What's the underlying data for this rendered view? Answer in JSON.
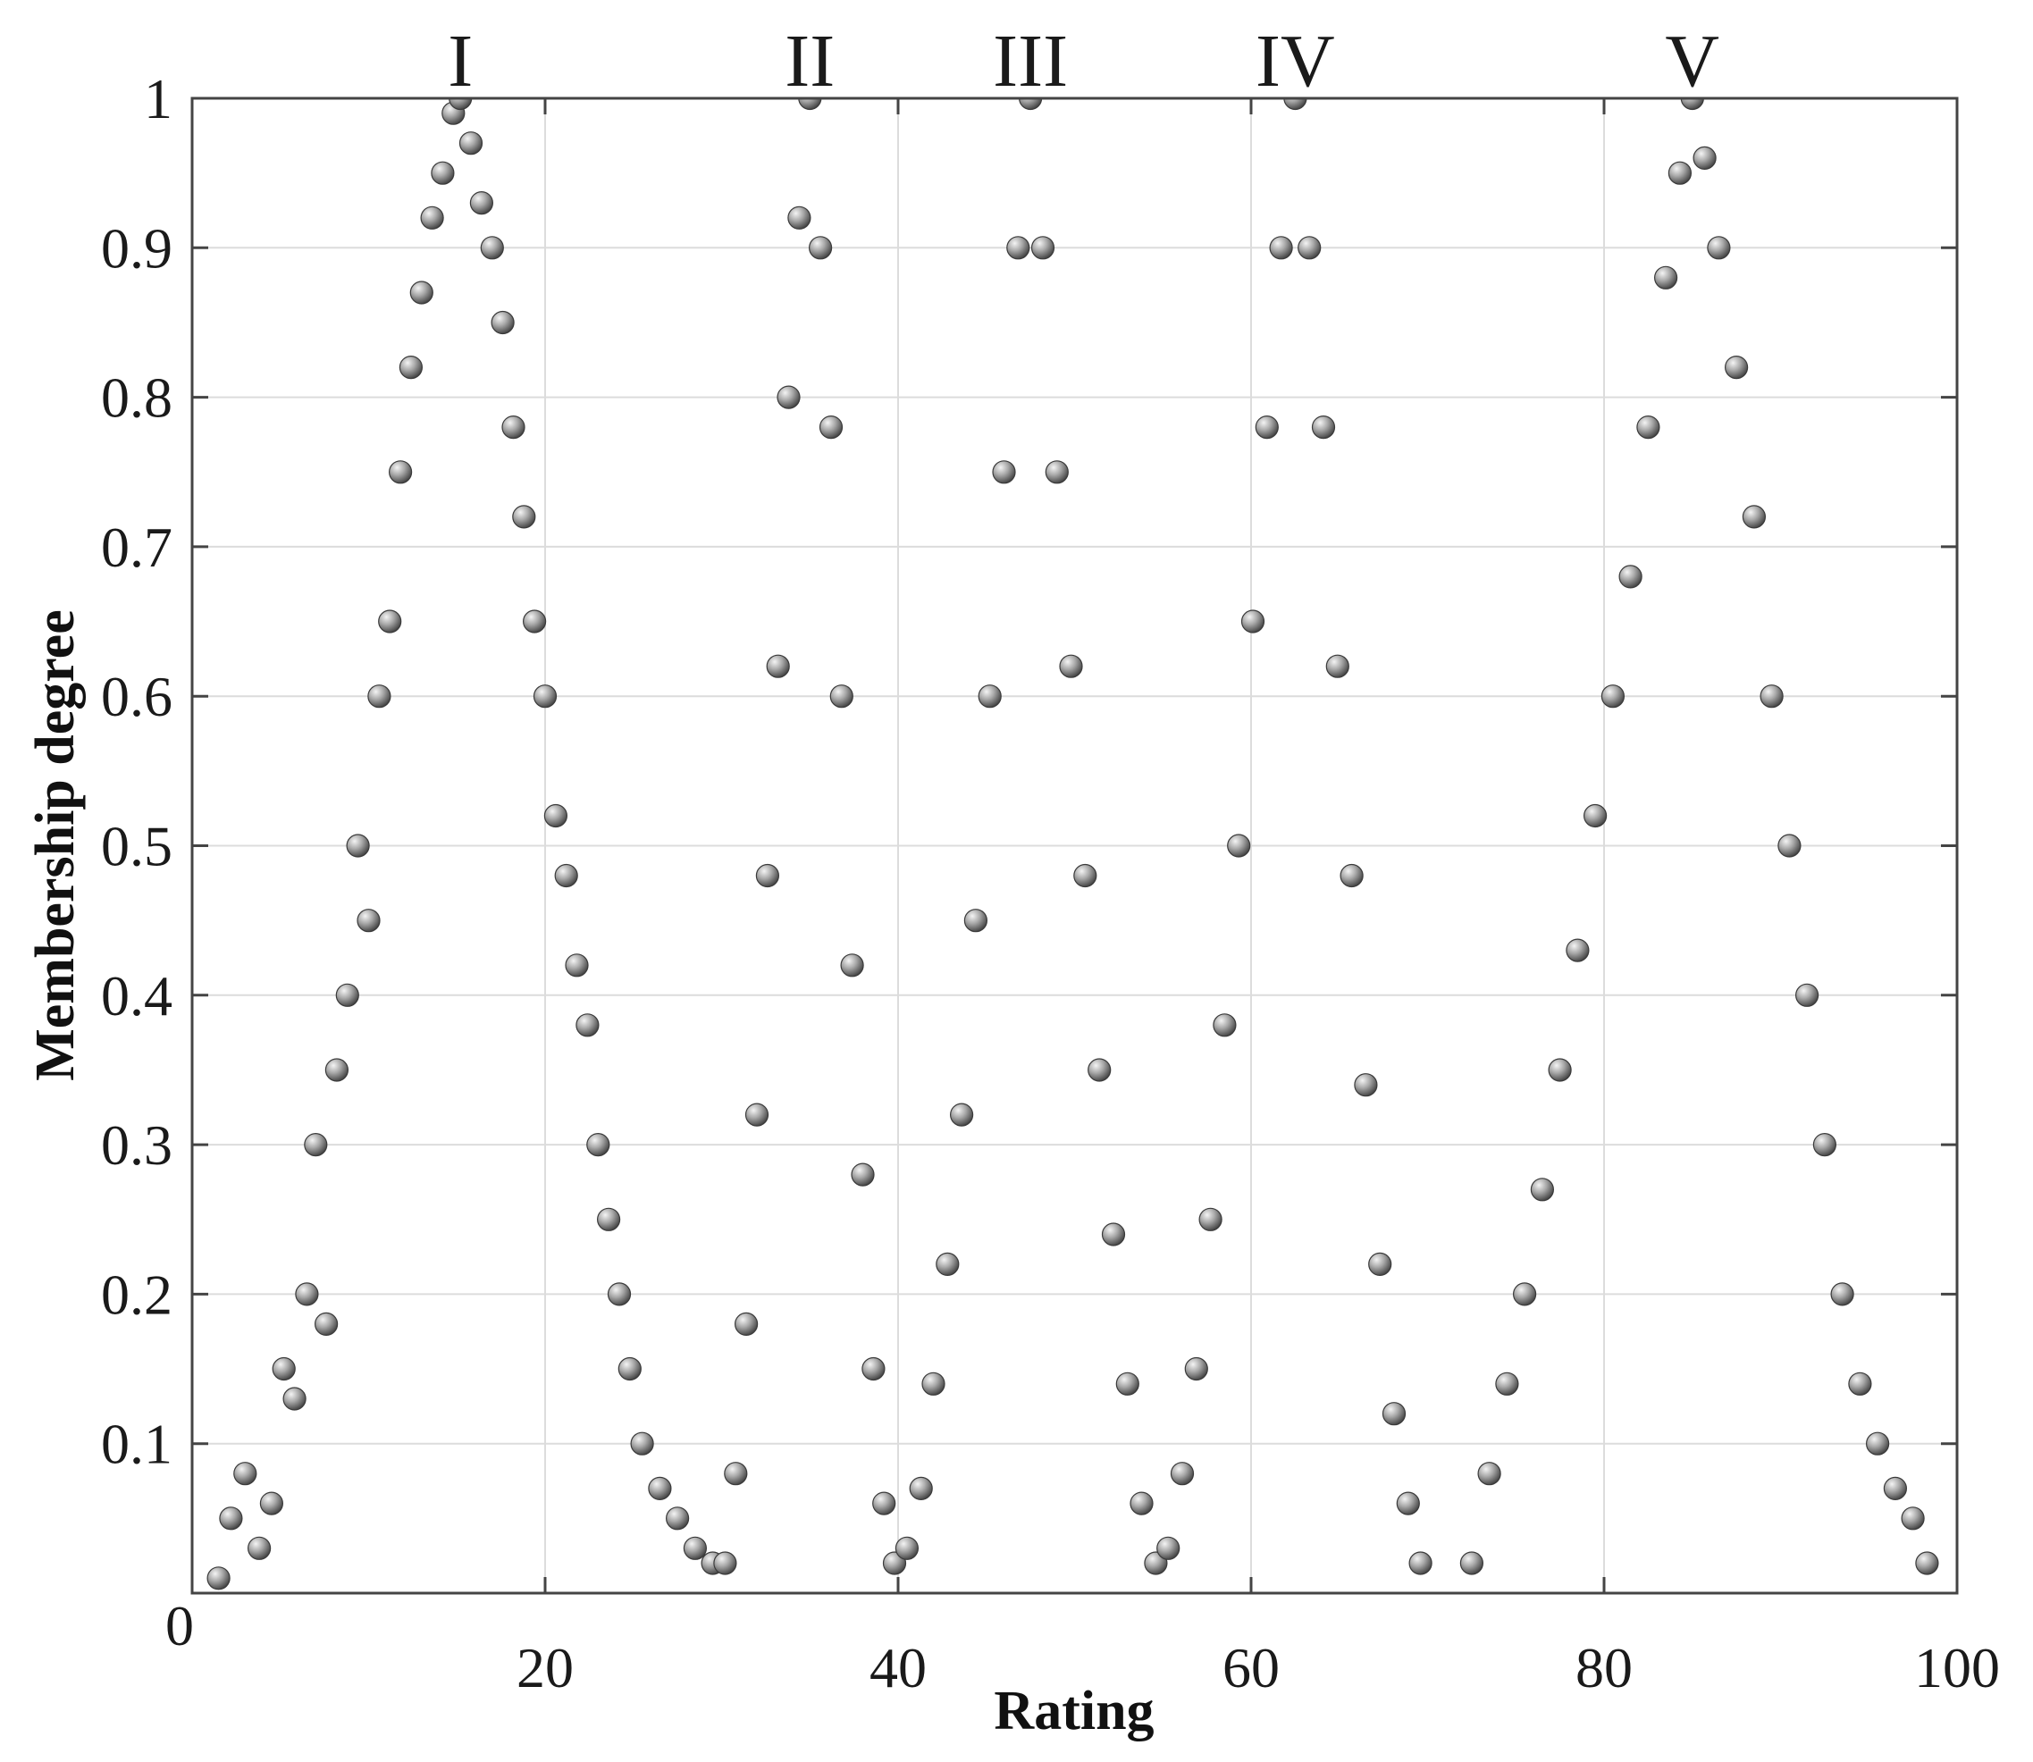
{
  "chart_data": {
    "type": "scatter",
    "xlabel": "Rating",
    "ylabel": "Membership degree",
    "xlim": [
      0,
      100
    ],
    "ylim": [
      0,
      1
    ],
    "x_ticks": [
      0,
      20,
      40,
      60,
      80,
      100
    ],
    "x_tick_labels": [
      "0",
      "20",
      "40",
      "60",
      "80",
      "100"
    ],
    "y_ticks": [
      0.1,
      0.2,
      0.3,
      0.4,
      0.5,
      0.6,
      0.7,
      0.8,
      0.9,
      1
    ],
    "y_tick_labels": [
      "0.1",
      "0.2",
      "0.3",
      "0.4",
      "0.5",
      "0.6",
      "0.7",
      "0.8",
      "0.9",
      "1"
    ],
    "grid": true,
    "marker_color": "#8c8c8c",
    "marker_edge_color": "#3a3a3a",
    "peaks": [
      {
        "label": "I",
        "center": 15.2,
        "left_base": 1.0,
        "right_base": 30.0
      },
      {
        "label": "II",
        "center": 35.0,
        "left_base": 30.0,
        "right_base": 40.0
      },
      {
        "label": "III",
        "center": 47.5,
        "left_base": 40.5,
        "right_base": 55.0
      },
      {
        "label": "IV",
        "center": 62.5,
        "left_base": 55.0,
        "right_base": 70.0
      },
      {
        "label": "V",
        "center": 85.0,
        "left_base": 72.0,
        "right_base": 98.5
      }
    ],
    "series": [
      {
        "values": [
          [
            1.5,
            0.01
          ],
          [
            2.2,
            0.05
          ],
          [
            3.0,
            0.08
          ],
          [
            3.8,
            0.03
          ],
          [
            4.5,
            0.06
          ],
          [
            5.2,
            0.15
          ],
          [
            5.8,
            0.13
          ],
          [
            6.5,
            0.2
          ],
          [
            7.0,
            0.3
          ],
          [
            7.6,
            0.18
          ],
          [
            8.2,
            0.35
          ],
          [
            8.8,
            0.4
          ],
          [
            9.4,
            0.5
          ],
          [
            10.0,
            0.45
          ],
          [
            10.6,
            0.6
          ],
          [
            11.2,
            0.65
          ],
          [
            11.8,
            0.75
          ],
          [
            12.4,
            0.82
          ],
          [
            13.0,
            0.87
          ],
          [
            13.6,
            0.92
          ],
          [
            14.2,
            0.95
          ],
          [
            14.8,
            0.99
          ],
          [
            15.2,
            1.0
          ],
          [
            15.8,
            0.97
          ],
          [
            16.4,
            0.93
          ],
          [
            17.0,
            0.9
          ],
          [
            17.6,
            0.85
          ],
          [
            18.2,
            0.78
          ],
          [
            18.8,
            0.72
          ],
          [
            19.4,
            0.65
          ],
          [
            20.0,
            0.6
          ],
          [
            20.6,
            0.52
          ],
          [
            21.2,
            0.48
          ],
          [
            21.8,
            0.42
          ],
          [
            22.4,
            0.38
          ],
          [
            23.0,
            0.3
          ],
          [
            23.6,
            0.25
          ],
          [
            24.2,
            0.2
          ],
          [
            24.8,
            0.15
          ],
          [
            25.5,
            0.1
          ],
          [
            26.5,
            0.07
          ],
          [
            27.5,
            0.05
          ],
          [
            28.5,
            0.03
          ],
          [
            29.5,
            0.02
          ]
        ]
      },
      {
        "values": [
          [
            30.2,
            0.02
          ],
          [
            30.8,
            0.08
          ],
          [
            31.4,
            0.18
          ],
          [
            32.0,
            0.32
          ],
          [
            32.6,
            0.48
          ],
          [
            33.2,
            0.62
          ],
          [
            33.8,
            0.8
          ],
          [
            34.4,
            0.92
          ],
          [
            35.0,
            1.0
          ],
          [
            35.6,
            0.9
          ],
          [
            36.2,
            0.78
          ],
          [
            36.8,
            0.6
          ],
          [
            37.4,
            0.42
          ],
          [
            38.0,
            0.28
          ],
          [
            38.6,
            0.15
          ],
          [
            39.2,
            0.06
          ],
          [
            39.8,
            0.02
          ]
        ]
      },
      {
        "values": [
          [
            40.5,
            0.03
          ],
          [
            41.3,
            0.07
          ],
          [
            42.0,
            0.14
          ],
          [
            42.8,
            0.22
          ],
          [
            43.6,
            0.32
          ],
          [
            44.4,
            0.45
          ],
          [
            45.2,
            0.6
          ],
          [
            46.0,
            0.75
          ],
          [
            46.8,
            0.9
          ],
          [
            47.5,
            1.0
          ],
          [
            48.2,
            0.9
          ],
          [
            49.0,
            0.75
          ],
          [
            49.8,
            0.62
          ],
          [
            50.6,
            0.48
          ],
          [
            51.4,
            0.35
          ],
          [
            52.2,
            0.24
          ],
          [
            53.0,
            0.14
          ],
          [
            53.8,
            0.06
          ],
          [
            54.6,
            0.02
          ]
        ]
      },
      {
        "values": [
          [
            55.3,
            0.03
          ],
          [
            56.1,
            0.08
          ],
          [
            56.9,
            0.15
          ],
          [
            57.7,
            0.25
          ],
          [
            58.5,
            0.38
          ],
          [
            59.3,
            0.5
          ],
          [
            60.1,
            0.65
          ],
          [
            60.9,
            0.78
          ],
          [
            61.7,
            0.9
          ],
          [
            62.5,
            1.0
          ],
          [
            63.3,
            0.9
          ],
          [
            64.1,
            0.78
          ],
          [
            64.9,
            0.62
          ],
          [
            65.7,
            0.48
          ],
          [
            66.5,
            0.34
          ],
          [
            67.3,
            0.22
          ],
          [
            68.1,
            0.12
          ],
          [
            68.9,
            0.06
          ],
          [
            69.6,
            0.02
          ]
        ]
      },
      {
        "values": [
          [
            72.5,
            0.02
          ],
          [
            73.5,
            0.08
          ],
          [
            74.5,
            0.14
          ],
          [
            75.5,
            0.2
          ],
          [
            76.5,
            0.27
          ],
          [
            77.5,
            0.35
          ],
          [
            78.5,
            0.43
          ],
          [
            79.5,
            0.52
          ],
          [
            80.5,
            0.6
          ],
          [
            81.5,
            0.68
          ],
          [
            82.5,
            0.78
          ],
          [
            83.5,
            0.88
          ],
          [
            84.3,
            0.95
          ],
          [
            85.0,
            1.0
          ],
          [
            85.7,
            0.96
          ],
          [
            86.5,
            0.9
          ],
          [
            87.5,
            0.82
          ],
          [
            88.5,
            0.72
          ],
          [
            89.5,
            0.6
          ],
          [
            90.5,
            0.5
          ],
          [
            91.5,
            0.4
          ],
          [
            92.5,
            0.3
          ],
          [
            93.5,
            0.2
          ],
          [
            94.5,
            0.14
          ],
          [
            95.5,
            0.1
          ],
          [
            96.5,
            0.07
          ],
          [
            97.5,
            0.05
          ],
          [
            98.3,
            0.02
          ]
        ]
      }
    ]
  }
}
